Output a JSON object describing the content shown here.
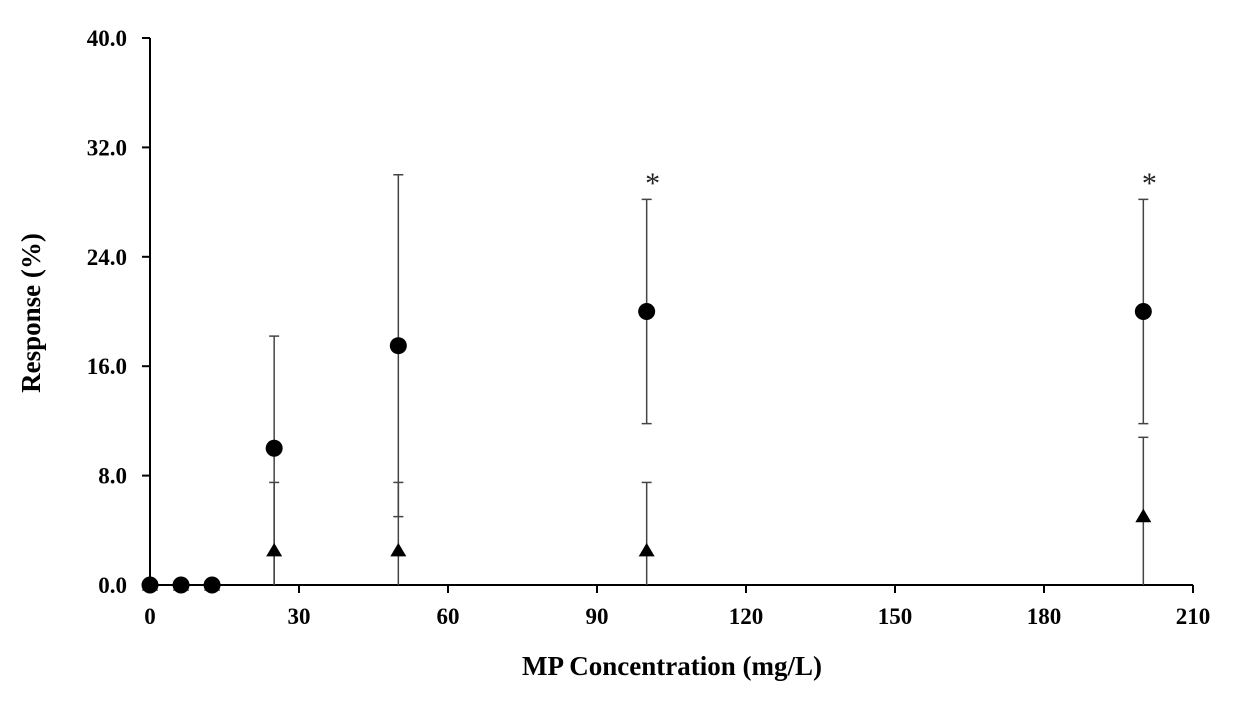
{
  "chart_data": {
    "type": "scatter",
    "title": "",
    "xlabel": "MP Concentration (mg/L)",
    "ylabel": "Response (%)",
    "xlim": [
      0,
      210
    ],
    "ylim": [
      0,
      40
    ],
    "xticks": [
      "0",
      "30",
      "60",
      "90",
      "120",
      "150",
      "180",
      "210"
    ],
    "yticks": [
      "0.0",
      "8.0",
      "16.0",
      "24.0",
      "32.0",
      "40.0"
    ],
    "grid": false,
    "legend": "none",
    "series": [
      {
        "name": "circles",
        "marker": "circle",
        "points": [
          {
            "x": 0,
            "y": 0,
            "err_plus": 0,
            "err_minus": 0
          },
          {
            "x": 6.25,
            "y": 0,
            "err_plus": 0,
            "err_minus": 0
          },
          {
            "x": 12.5,
            "y": 0,
            "err_plus": 0,
            "err_minus": 0
          },
          {
            "x": 25,
            "y": 10.0,
            "err_plus": 8.2,
            "err_minus": 10.0
          },
          {
            "x": 50,
            "y": 17.5,
            "err_plus": 12.5,
            "err_minus": 12.5
          },
          {
            "x": 100,
            "y": 20.0,
            "err_plus": 8.2,
            "err_minus": 8.2
          },
          {
            "x": 200,
            "y": 20.0,
            "err_plus": 8.2,
            "err_minus": 8.2
          }
        ]
      },
      {
        "name": "triangles",
        "marker": "triangle",
        "points": [
          {
            "x": 0,
            "y": 0,
            "err_plus": 0,
            "err_minus": 0
          },
          {
            "x": 6.25,
            "y": 0,
            "err_plus": 0,
            "err_minus": 0
          },
          {
            "x": 12.5,
            "y": 0,
            "err_plus": 0,
            "err_minus": 0
          },
          {
            "x": 25,
            "y": 2.5,
            "err_plus": 5.0,
            "err_minus": 2.5
          },
          {
            "x": 50,
            "y": 2.5,
            "err_plus": 5.0,
            "err_minus": 2.5
          },
          {
            "x": 100,
            "y": 2.5,
            "err_plus": 5.0,
            "err_minus": 2.5
          },
          {
            "x": 200,
            "y": 5.0,
            "err_plus": 5.8,
            "err_minus": 5.0
          }
        ]
      }
    ],
    "annotations": [
      {
        "text": "*",
        "x": 100,
        "y": 30.0
      },
      {
        "text": "*",
        "x": 200,
        "y": 30.0
      }
    ]
  }
}
